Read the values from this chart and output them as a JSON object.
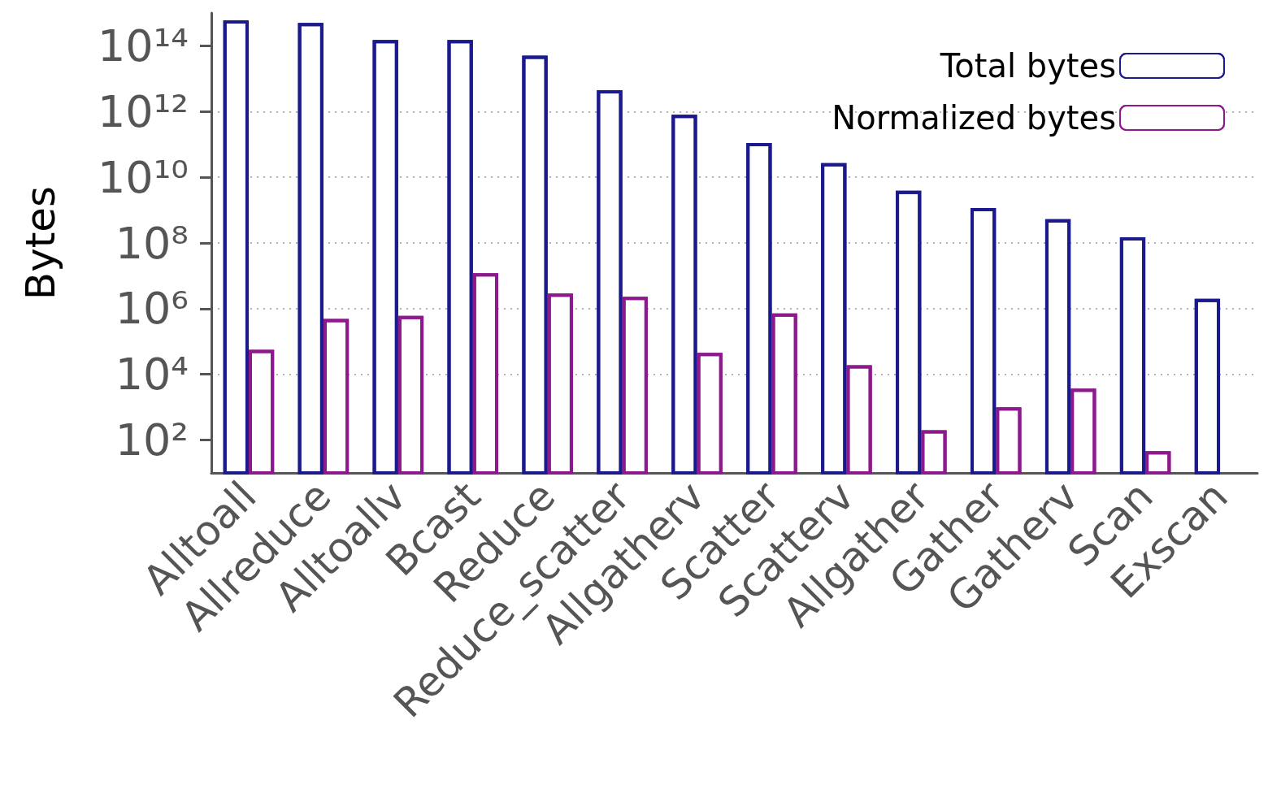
{
  "chart_data": {
    "type": "bar",
    "ylabel": "Bytes",
    "log": "y",
    "grid": "y",
    "legend": "top right",
    "categories": [
      "Alltoall",
      "Allreduce",
      "Alltoallv",
      "Bcast",
      "Reduce",
      "Reduce_scatter",
      "Allgatherv",
      "Scatter",
      "Scatterv",
      "Allgather",
      "Gather",
      "Gatherv",
      "Scan",
      "Exscan"
    ],
    "ylim": [
      10,
      1000000000000000.0
    ],
    "yticks": [
      {
        "value": 100,
        "label": "10²"
      },
      {
        "value": 10000,
        "label": "10⁴"
      },
      {
        "value": 1000000,
        "label": "10⁶"
      },
      {
        "value": 100000000,
        "label": "10⁸"
      },
      {
        "value": 10000000000,
        "label": "10¹⁰"
      },
      {
        "value": 1000000000000,
        "label": "10¹²"
      },
      {
        "value": 100000000000000,
        "label": "10¹⁴"
      }
    ],
    "series": [
      {
        "name": "Total bytes",
        "color": "#1a1a8c",
        "values": [
          600000000000000.0,
          500000000000000.0,
          150000000000000.0,
          150000000000000.0,
          50000000000000.0,
          4500000000000.0,
          800000000000.0,
          110000000000.0,
          27000000000.0,
          3900000000.0,
          1150000000.0,
          530000000.0,
          150000000.0,
          2000000.0
        ]
      },
      {
        "name": "Normalized bytes",
        "color": "#8c1a8c",
        "values": [
          56000.0,
          490000.0,
          600000.0,
          12000000.0,
          2900000.0,
          2300000.0,
          45000.0,
          720000.0,
          19000.0,
          200,
          1000,
          3700,
          46,
          null
        ]
      }
    ]
  }
}
